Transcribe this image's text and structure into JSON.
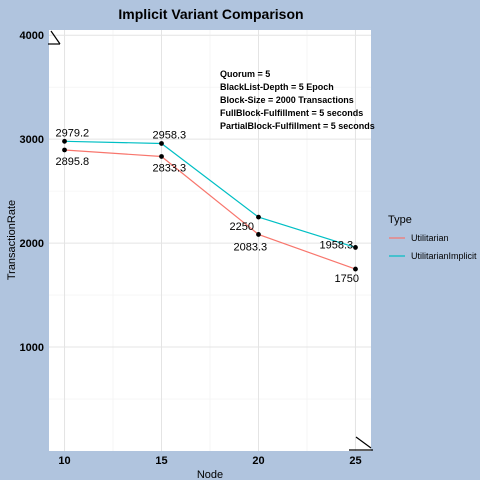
{
  "chart_data": {
    "type": "line",
    "title": "Implicit Variant Comparison",
    "xlabel": "Node",
    "ylabel": "TransactionRate",
    "x": [
      10,
      15,
      20,
      25
    ],
    "xlim": [
      9.2,
      25.8
    ],
    "ylim": [
      0,
      4050
    ],
    "x_ticks": [
      "10",
      "15",
      "20",
      "25"
    ],
    "y_ticks": [
      "1000",
      "2000",
      "3000",
      "4000"
    ],
    "grid": true,
    "legend": {
      "title": "Type",
      "position": "right"
    },
    "series": [
      {
        "name": "Utilitarian",
        "color": "#f8766d",
        "values": [
          2895.8,
          2833.3,
          2083.3,
          1750
        ],
        "labels": [
          "2895.8",
          "2833.3",
          "2083.3",
          "1750"
        ]
      },
      {
        "name": "UtilitarianImplicit",
        "color": "#00bfc4",
        "values": [
          2979.2,
          2958.3,
          2250,
          1958.3
        ],
        "labels": [
          "2979.2",
          "2958.3",
          "2250",
          "1958.3"
        ]
      }
    ],
    "annotations": [
      "Quorum = 5",
      "BlackList-Depth = 5 Epoch",
      "Block-Size = 2000 Transactions",
      "FullBlock-Fulfillment = 5 seconds",
      "PartialBlock-Fulfillment = 5 seconds"
    ]
  }
}
